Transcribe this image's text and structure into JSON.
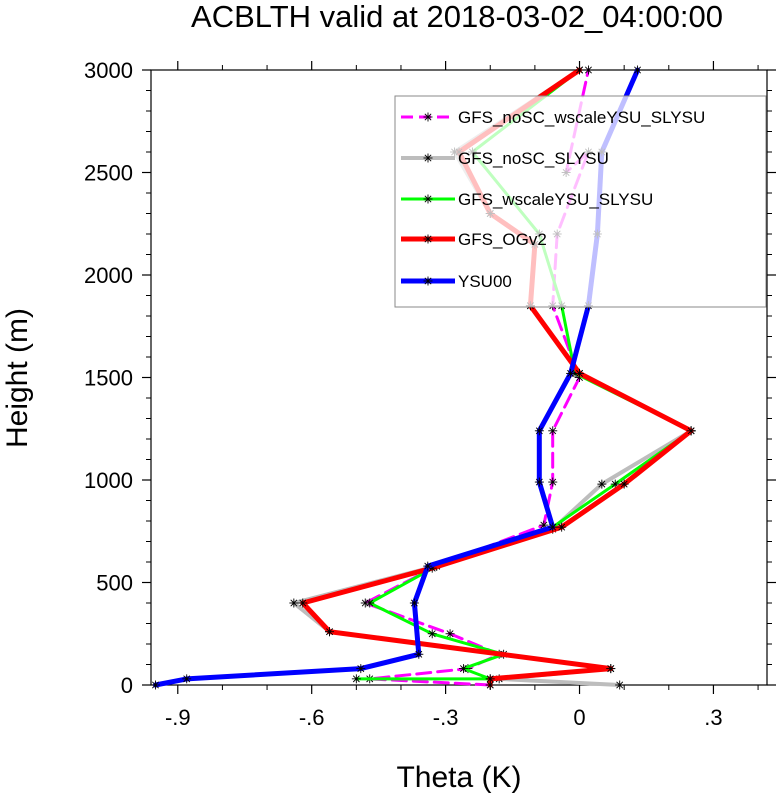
{
  "chart_data": {
    "type": "line",
    "title": "ACBLTH valid at 2018-03-02_04:00:00",
    "xlabel": "Theta (K)",
    "ylabel": "Height (m)",
    "xlim": [
      -0.96,
      0.42
    ],
    "ylim": [
      0,
      3000
    ],
    "x_ticks": [
      -0.9,
      -0.6,
      -0.3,
      0,
      0.3
    ],
    "x_tick_labels": [
      "-.9",
      "-.6",
      "-.3",
      "0",
      ".3"
    ],
    "y_ticks": [
      0,
      500,
      1000,
      1500,
      2000,
      2500,
      3000
    ],
    "y_tick_labels": [
      "0",
      "500",
      "1000",
      "1500",
      "2000",
      "2500",
      "3000"
    ],
    "grid": false,
    "legend_position": "top-right",
    "series": [
      {
        "name": "GFS_noSC_wscaleYSU_SLYSU",
        "color": "#ff00ff",
        "dash": true,
        "width": 3,
        "x": [
          -0.2,
          -0.47,
          -0.25,
          -0.18,
          -0.29,
          -0.48,
          -0.32,
          -0.08,
          -0.06,
          -0.06,
          0.0,
          -0.06,
          -0.05,
          0.02,
          -0.03,
          0.02
        ],
        "y": [
          0,
          30,
          80,
          150,
          250,
          400,
          580,
          780,
          990,
          1240,
          1500,
          1850,
          2200,
          2600,
          2500,
          3000
        ]
      },
      {
        "name": "GFS_noSC_SLYSU",
        "color": "#bdbdbd",
        "dash": false,
        "width": 4,
        "x": [
          0.09,
          -0.18,
          0.07,
          -0.56,
          -0.64,
          -0.32,
          -0.06,
          0.05,
          0.25,
          0.0,
          -0.11,
          -0.1,
          -0.2,
          -0.28,
          0.0
        ],
        "y": [
          0,
          30,
          80,
          260,
          400,
          580,
          760,
          980,
          1240,
          1520,
          1850,
          2150,
          2300,
          2600,
          3000
        ]
      },
      {
        "name": "GFS_wscaleYSU_SLYSU",
        "color": "#00ff00",
        "dash": false,
        "width": 3,
        "x": [
          -0.5,
          -0.2,
          -0.26,
          -0.17,
          -0.33,
          -0.47,
          -0.32,
          -0.06,
          0.08,
          0.25,
          -0.01,
          -0.04,
          -0.09,
          -0.24,
          0.0
        ],
        "y": [
          30,
          30,
          80,
          150,
          250,
          400,
          580,
          770,
          980,
          1240,
          1520,
          1850,
          2200,
          2600,
          3000
        ]
      },
      {
        "name": "GFS_OGv2",
        "color": "#ff0000",
        "dash": false,
        "width": 5,
        "x": [
          -0.2,
          -0.2,
          0.07,
          -0.56,
          -0.62,
          -0.33,
          -0.04,
          0.1,
          0.25,
          0.0,
          -0.11,
          -0.1,
          -0.2,
          -0.27,
          0.0
        ],
        "y": [
          0,
          30,
          80,
          260,
          400,
          570,
          770,
          980,
          1240,
          1520,
          1850,
          2150,
          2300,
          2600,
          3000
        ]
      },
      {
        "name": "YSU00",
        "color": "#0000ff",
        "dash": false,
        "width": 5,
        "x": [
          -0.95,
          -0.88,
          -0.49,
          -0.36,
          -0.37,
          -0.34,
          -0.06,
          -0.09,
          -0.09,
          -0.02,
          0.02,
          0.04,
          0.05,
          0.13
        ],
        "y": [
          0,
          30,
          80,
          150,
          400,
          580,
          770,
          990,
          1240,
          1520,
          1850,
          2200,
          2600,
          3000
        ]
      }
    ]
  }
}
